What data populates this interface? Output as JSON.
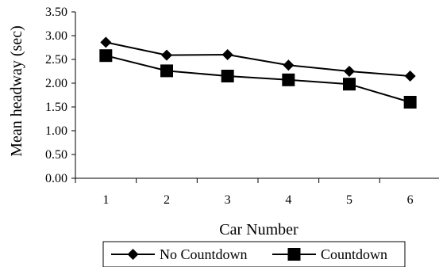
{
  "chart_data": {
    "type": "line",
    "xlabel": "Car Number",
    "ylabel": "Mean headway (sec)",
    "categories": [
      "1",
      "2",
      "3",
      "4",
      "5",
      "6"
    ],
    "ylim": [
      0,
      3.5
    ],
    "yticks": [
      "0.00",
      "0.50",
      "1.00",
      "1.50",
      "2.00",
      "2.50",
      "3.00",
      "3.50"
    ],
    "grid": false,
    "legend_position": "bottom",
    "series": [
      {
        "name": "No Countdown",
        "marker": "diamond",
        "color": "#000000",
        "values": [
          2.86,
          2.59,
          2.6,
          2.38,
          2.25,
          2.15
        ]
      },
      {
        "name": "Countdown",
        "marker": "square",
        "color": "#000000",
        "values": [
          2.58,
          2.26,
          2.15,
          2.07,
          1.98,
          1.6
        ]
      }
    ]
  }
}
